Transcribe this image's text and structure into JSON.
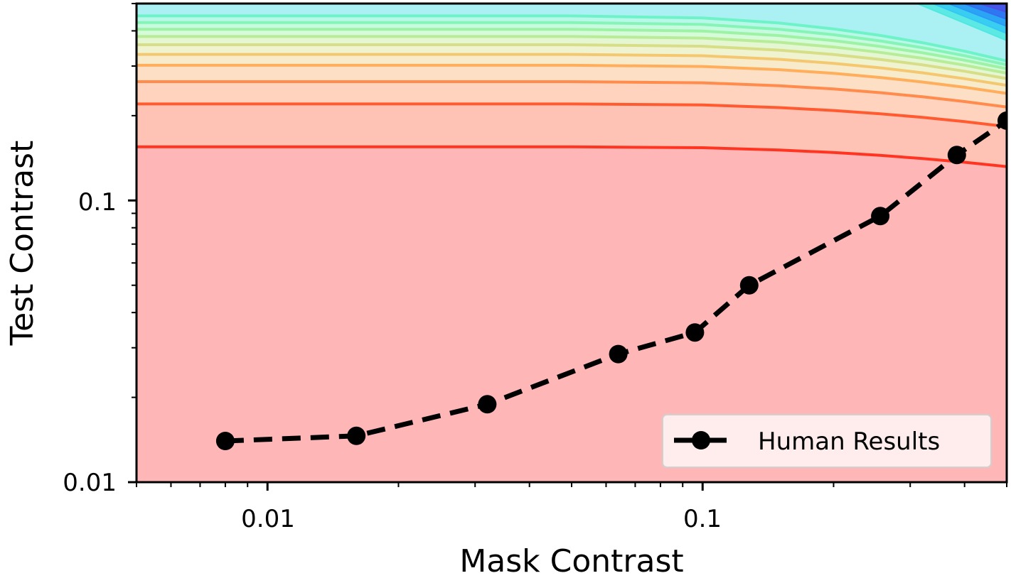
{
  "chart_data": {
    "type": "line",
    "xlabel": "Mask Contrast",
    "ylabel": "Test Contrast",
    "x_scale": "log",
    "y_scale": "log",
    "xlim": [
      0.005,
      0.5
    ],
    "ylim": [
      0.01,
      0.5
    ],
    "x_tick_labels": [
      {
        "value": 0.01,
        "label": "0.01"
      },
      {
        "value": 0.1,
        "label": "0.1"
      }
    ],
    "y_tick_labels": [
      {
        "value": 0.01,
        "label": "0.01"
      },
      {
        "value": 0.1,
        "label": "0.1"
      }
    ],
    "grid": false,
    "legend": {
      "position": "bottom-right",
      "entries": [
        "Human Results"
      ]
    },
    "series": [
      {
        "name": "Human Results",
        "style": "dashed line with circle markers",
        "color": "#000000",
        "x": [
          0.008,
          0.016,
          0.032,
          0.064,
          0.096,
          0.128,
          0.256,
          0.384,
          0.5
        ],
        "y": [
          0.014,
          0.0146,
          0.0189,
          0.0285,
          0.034,
          0.05,
          0.088,
          0.145,
          0.192
        ]
      }
    ],
    "contours": {
      "description": "model contour levels (background)",
      "base_fill": "#ffb6b6",
      "levels": [
        {
          "y": 0.155,
          "color": "#ff3522",
          "fill": "#ffc3b5"
        },
        {
          "y": 0.22,
          "color": "#ff5a30",
          "fill": "#ffd3bd"
        },
        {
          "y": 0.264,
          "color": "#ff8b4c",
          "fill": "#fddfc5"
        },
        {
          "y": 0.302,
          "color": "#ffae5c",
          "fill": "#f8ebcc"
        },
        {
          "y": 0.33,
          "color": "#f4c870",
          "fill": "#f0f3d0"
        },
        {
          "y": 0.357,
          "color": "#d8dd88",
          "fill": "#e4f7d2"
        },
        {
          "y": 0.382,
          "color": "#b8ec98",
          "fill": "#d6fbd8"
        },
        {
          "y": 0.405,
          "color": "#9ef2a6",
          "fill": "#c6fbe0"
        },
        {
          "y": 0.428,
          "color": "#86f4b6",
          "fill": "#b8f8e8"
        },
        {
          "y": 0.452,
          "color": "#6ef2c8",
          "fill": "#abf1f3"
        }
      ],
      "corner_colors": [
        "#4ee8e0",
        "#34c8f4",
        "#2a9cf6",
        "#3070f0",
        "#4a50e6"
      ]
    }
  }
}
